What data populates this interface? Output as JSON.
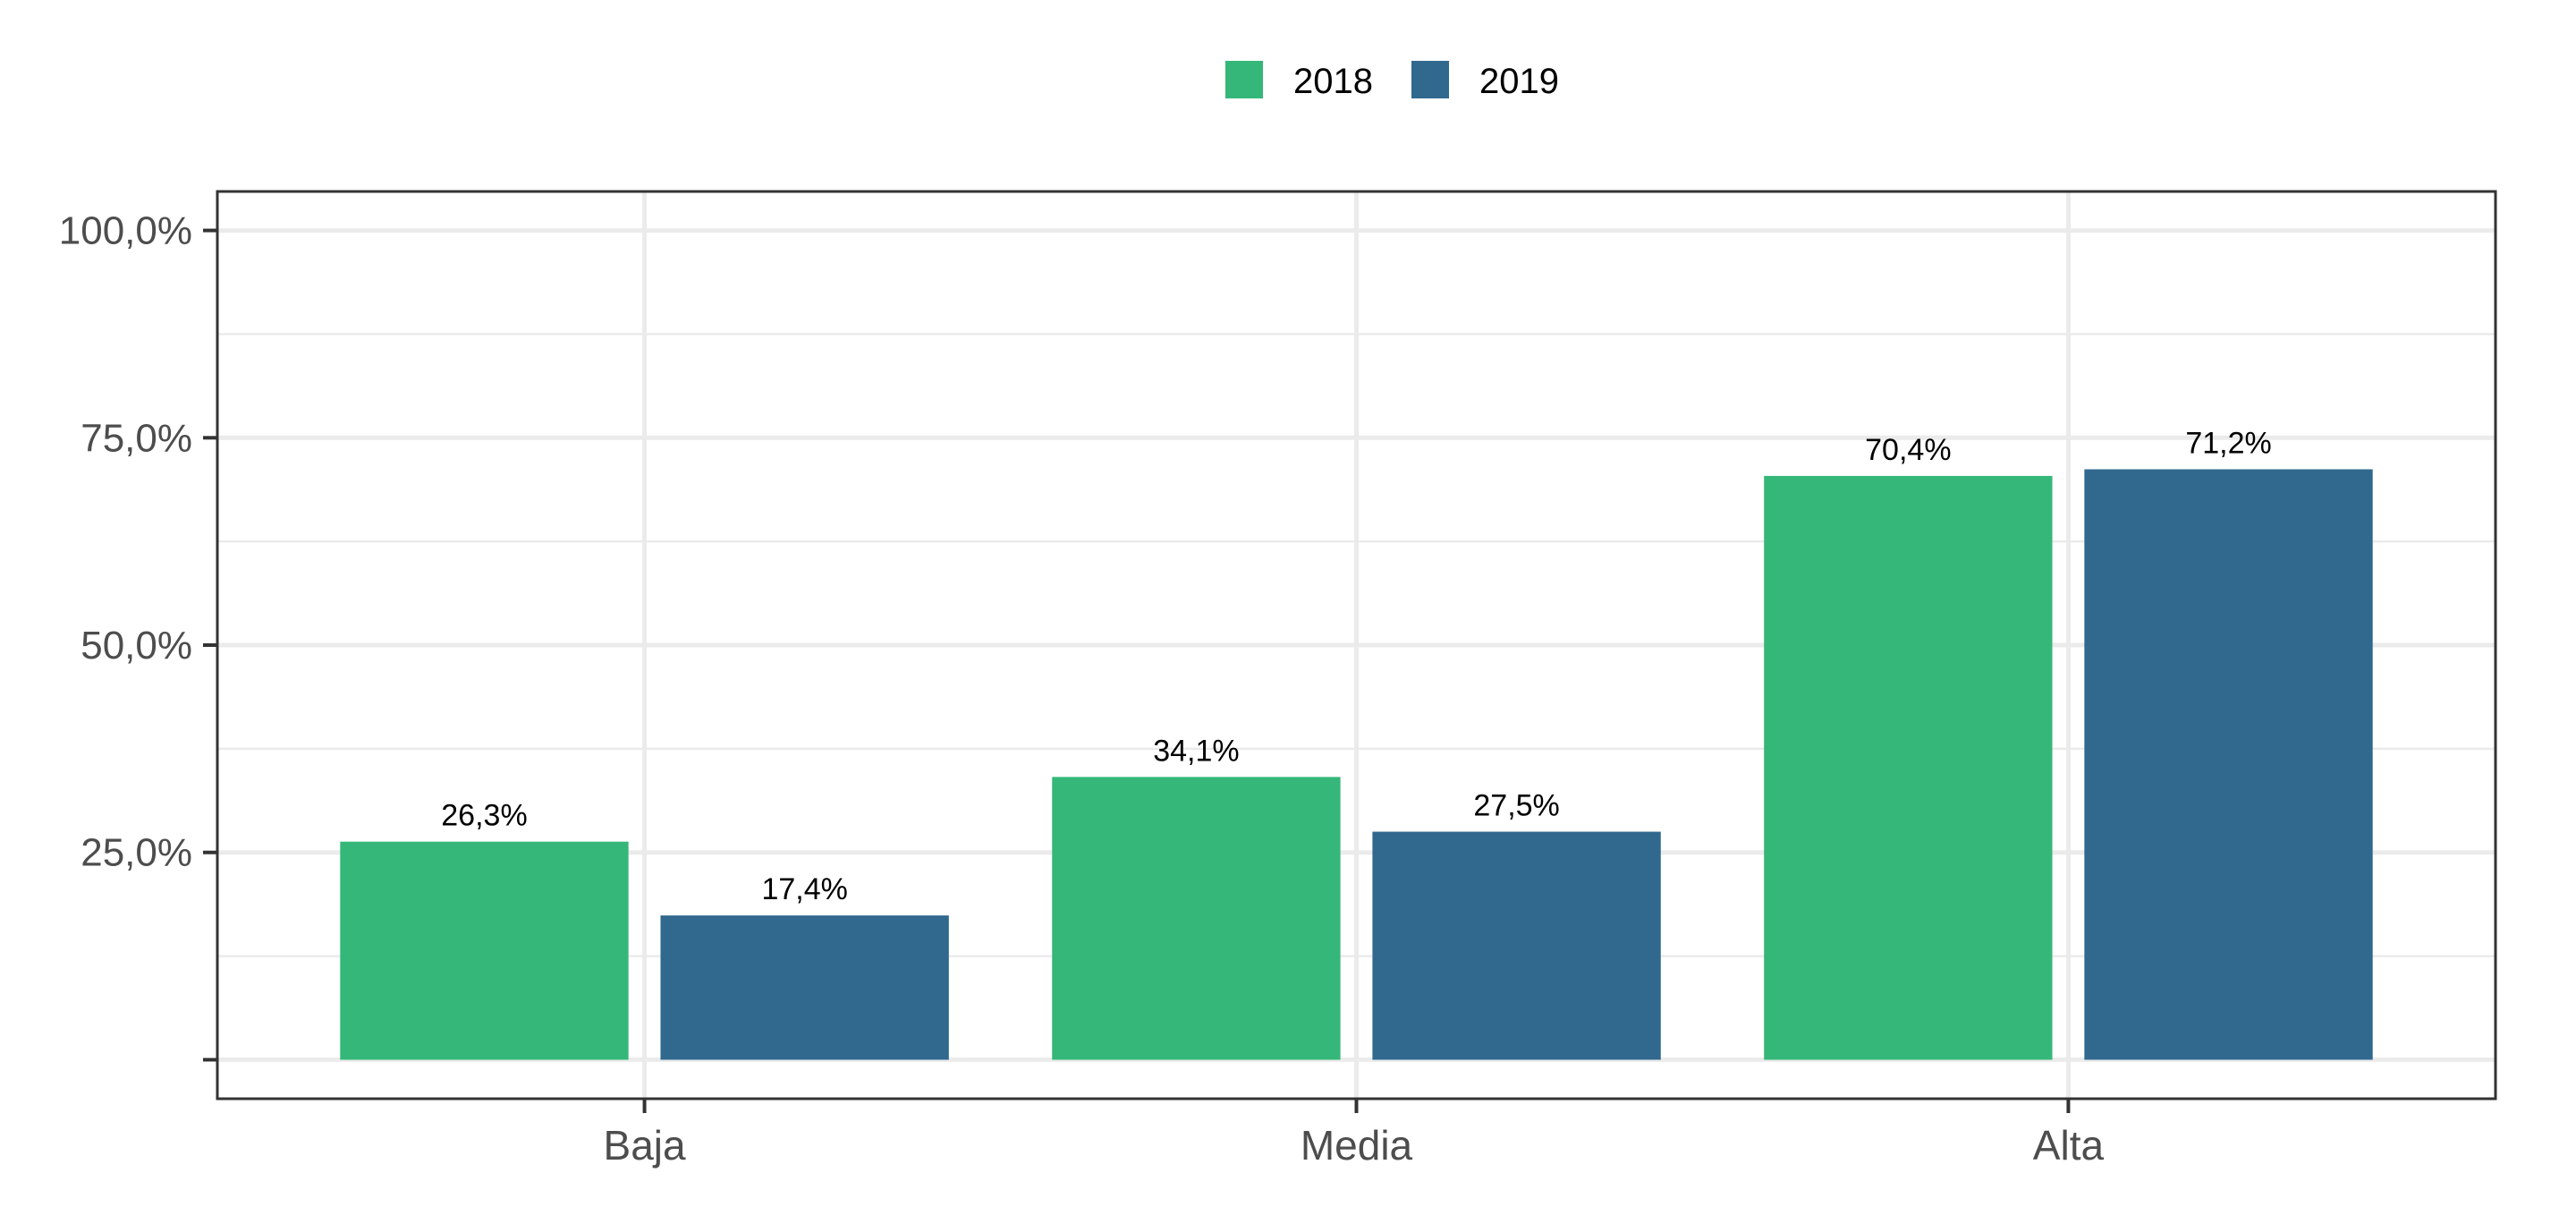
{
  "chart_data": {
    "type": "bar",
    "categories": [
      "Baja",
      "Media",
      "Alta"
    ],
    "series": [
      {
        "name": "2018",
        "color": "#35B779",
        "values": [
          26.3,
          34.1,
          70.4
        ],
        "labels": [
          "26,3%",
          "34,1%",
          "70,4%"
        ]
      },
      {
        "name": "2019",
        "color": "#31688E",
        "values": [
          17.4,
          27.5,
          71.2
        ],
        "labels": [
          "17,4%",
          "27,5%",
          "71,2%"
        ]
      }
    ],
    "yticks": [
      {
        "value": 100,
        "label": "100,0%"
      },
      {
        "value": 75,
        "label": "75,0%"
      },
      {
        "value": 50,
        "label": "50,0%"
      },
      {
        "value": 25,
        "label": "25,0%"
      },
      {
        "value": 0,
        "label": ""
      }
    ],
    "ylim": [
      -4.7,
      104.7
    ],
    "grid": true,
    "legend_position": "top",
    "title": "",
    "xlabel": "",
    "ylabel": ""
  }
}
